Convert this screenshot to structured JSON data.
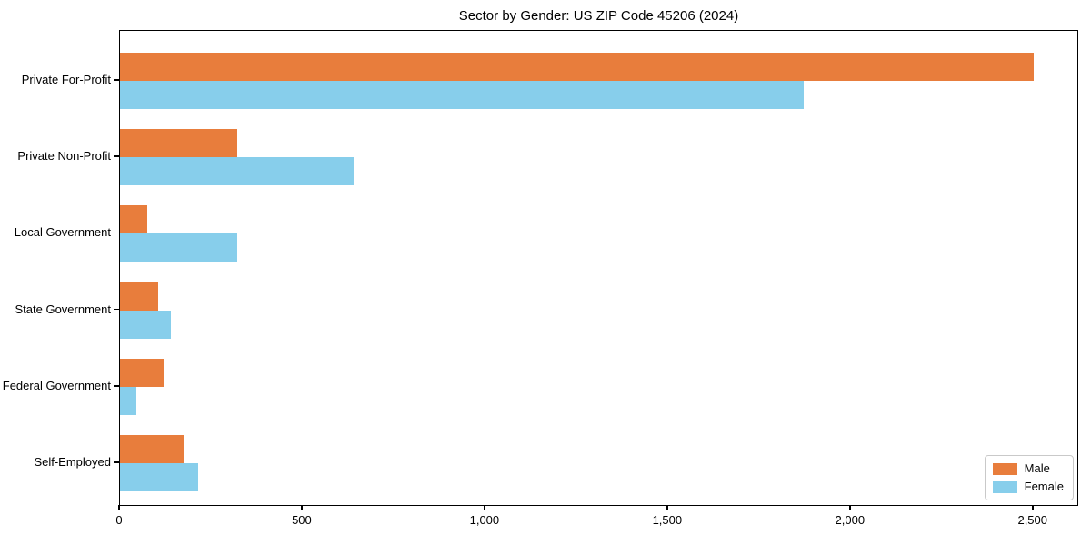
{
  "chart_data": {
    "type": "bar",
    "orientation": "horizontal",
    "title": "Sector by Gender: US ZIP Code 45206 (2024)",
    "categories": [
      "Private For-Profit",
      "Private Non-Profit",
      "Local Government",
      "State Government",
      "Federal Government",
      "Self-Employed"
    ],
    "series": [
      {
        "name": "Male",
        "color": "#e87d3c",
        "values": [
          2500,
          320,
          75,
          105,
          120,
          175
        ]
      },
      {
        "name": "Female",
        "color": "#87ceeb",
        "values": [
          1870,
          640,
          320,
          140,
          45,
          215
        ]
      }
    ],
    "xlabel": "",
    "ylabel": "",
    "xlim": [
      0,
      2625
    ],
    "xticks": {
      "values": [
        0,
        500,
        1000,
        1500,
        2000,
        2500
      ],
      "labels": [
        "0",
        "500",
        "1,000",
        "1,500",
        "2,000",
        "2,500"
      ]
    },
    "grid": false,
    "legend": {
      "position": "lower right",
      "entries": [
        "Male",
        "Female"
      ]
    },
    "colors": {
      "frame": "#000000",
      "background": "#ffffff",
      "legend_border": "#c9c9c9"
    }
  }
}
